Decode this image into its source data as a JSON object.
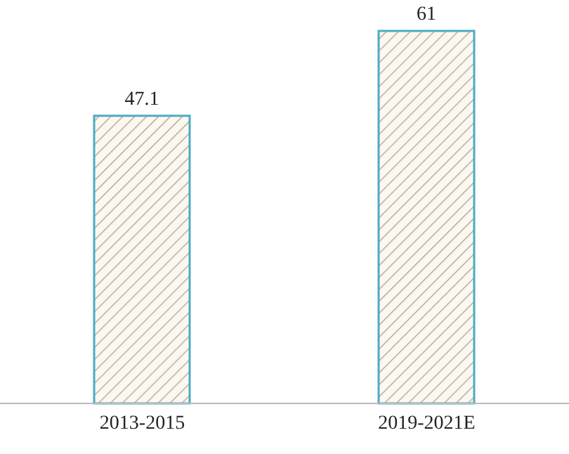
{
  "chart_data": {
    "type": "bar",
    "categories": [
      "2013-2015",
      "2019-2021E"
    ],
    "values": [
      47.1,
      61
    ],
    "color": "#4bacc6",
    "data_labels": true
  }
}
